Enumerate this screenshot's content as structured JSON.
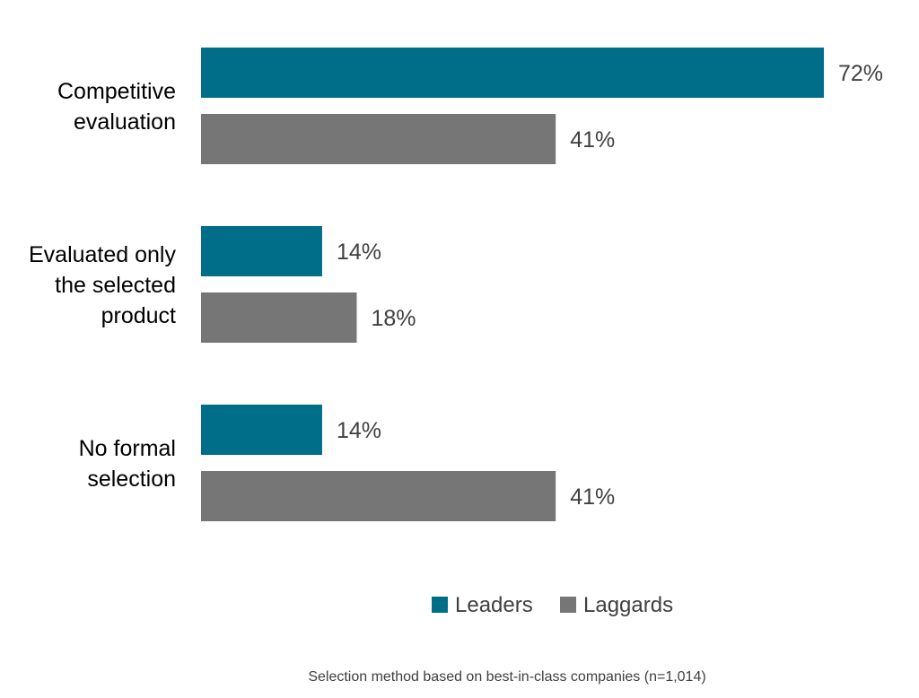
{
  "chart_data": {
    "type": "bar",
    "orientation": "horizontal",
    "categories": [
      [
        "Competitive",
        "evaluation"
      ],
      [
        "Evaluated only",
        "the selected",
        "product"
      ],
      [
        "No formal",
        "selection"
      ]
    ],
    "series": [
      {
        "name": "Leaders",
        "color": "#006E89",
        "values": [
          72,
          14,
          14
        ]
      },
      {
        "name": "Laggards",
        "color": "#767676",
        "values": [
          41,
          18,
          41
        ]
      }
    ],
    "value_suffix": "%",
    "xlim": [
      0,
      72
    ],
    "grid": false,
    "axes_visible": false,
    "legend": "bottom"
  },
  "footnote": "Selection method based on best-in-class companies (n=1,014)"
}
